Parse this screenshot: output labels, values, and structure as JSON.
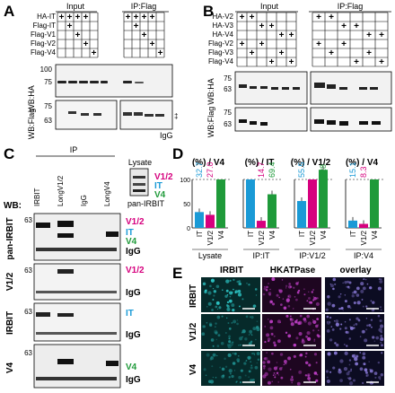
{
  "panels": {
    "A": {
      "label": "A",
      "headers": [
        "Input",
        "IP:Flag"
      ],
      "row_labels": [
        "HA-IT",
        "Flag-IT",
        "Flag-V1",
        "Flag-V2",
        "Flag-V4"
      ],
      "wb_labels": [
        "WB:HA",
        "WB:Flag"
      ],
      "mw_top": [
        "100",
        "75"
      ],
      "mw_bottom": [
        "75",
        "63"
      ],
      "igg": "IgG",
      "dagger": "‡"
    },
    "B": {
      "label": "B",
      "headers": [
        "Input",
        "IP:Flag"
      ],
      "row_labels": [
        "HA-V2",
        "HA-V3",
        "HA-V4",
        "Flag-V2",
        "Flag-V3",
        "Flag-V4"
      ],
      "wb_labels": [
        "WB:HA",
        "WB:Flag"
      ],
      "mw_top": [
        "75",
        "63"
      ],
      "mw_bottom": [
        "75",
        "63"
      ]
    },
    "C": {
      "label": "C",
      "ip_header": "IP",
      "lanes": [
        "IRBIT",
        "LongV1/2",
        "IgG",
        "LongV4"
      ],
      "wb_title": "WB:",
      "blots": [
        "pan-IRBIT",
        "V1/2",
        "IRBIT",
        "V4"
      ],
      "mw": [
        "63",
        "63",
        "63",
        "63"
      ],
      "lysate_label": "Lysate",
      "lysate_blot": "pan-IRBIT",
      "markers": [
        "V1/2",
        "IT",
        "V4"
      ],
      "igg": "IgG",
      "colors": {
        "v12": "#d6007e",
        "it": "#1a9ad6",
        "v4": "#1f9a3a"
      }
    },
    "D": {
      "label": "D",
      "y_ticks": [
        "100",
        "50",
        "0"
      ]
    },
    "E": {
      "label": "E",
      "columns": [
        "IRBIT",
        "HKATPase",
        "overlay"
      ],
      "rows": [
        "IRBIT",
        "V1/2",
        "V4"
      ]
    }
  },
  "chart_data": [
    {
      "type": "bar",
      "title": "(%) / V4",
      "xlabel": "Lysate",
      "categories": [
        "IT",
        "V1/2",
        "V4"
      ],
      "values": [
        32.7,
        27.0,
        100
      ],
      "value_labels": [
        "32.7",
        "27.0",
        ""
      ],
      "colors": [
        "#1a9ad6",
        "#d6007e",
        "#1f9a3a"
      ],
      "ylim": [
        0,
        100
      ]
    },
    {
      "type": "bar",
      "title": "(%) / IT",
      "xlabel": "IP:IT",
      "categories": [
        "IT",
        "V1/2",
        "V4"
      ],
      "values": [
        100,
        14.7,
        69.4
      ],
      "value_labels": [
        "",
        "14.7",
        "69.4"
      ],
      "colors": [
        "#1a9ad6",
        "#d6007e",
        "#1f9a3a"
      ],
      "ylim": [
        0,
        100
      ]
    },
    {
      "type": "bar",
      "title": "(%) / V1/2",
      "xlabel": "IP:V1/2",
      "categories": [
        "IT",
        "V1/2",
        "V4"
      ],
      "values": [
        55.5,
        100,
        228
      ],
      "value_labels": [
        "55.5",
        "",
        "228"
      ],
      "colors": [
        "#1a9ad6",
        "#d6007e",
        "#1f9a3a"
      ],
      "ylim": [
        0,
        100
      ]
    },
    {
      "type": "bar",
      "title": "(%) / V4",
      "xlabel": "IP:V4",
      "categories": [
        "IT",
        "V1/2",
        "V4"
      ],
      "values": [
        15.1,
        8.3,
        100
      ],
      "value_labels": [
        "15.1",
        "8.3",
        ""
      ],
      "colors": [
        "#1a9ad6",
        "#d6007e",
        "#1f9a3a"
      ],
      "ylim": [
        0,
        100
      ]
    }
  ]
}
